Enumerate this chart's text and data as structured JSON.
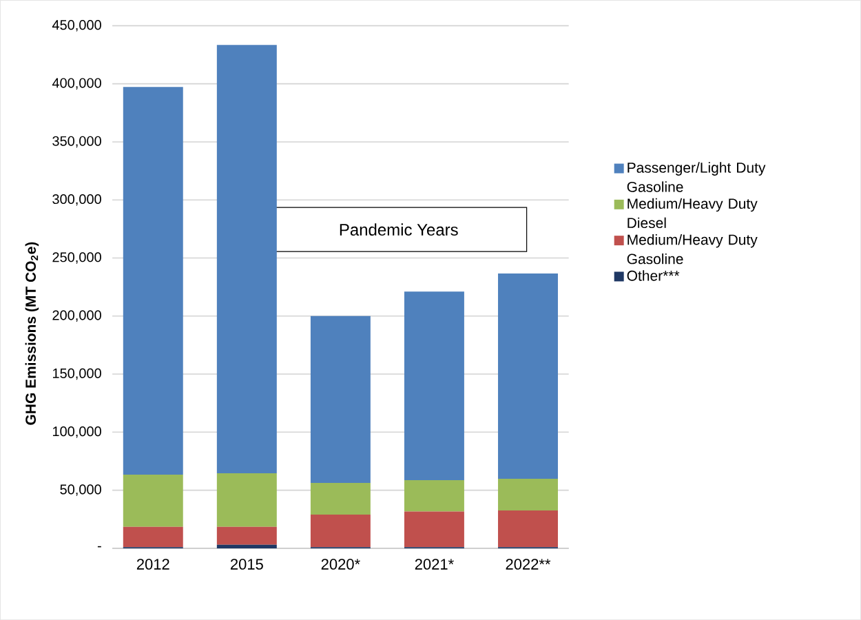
{
  "chart_data": {
    "type": "bar",
    "stacked": true,
    "categories": [
      "2012",
      "2015",
      "2020*",
      "2021*",
      "2022**"
    ],
    "ylabel": "**GHG Emissions (MT CO$_{2}$e)**",
    "ylim": [
      0,
      450000
    ],
    "yticks": [
      {
        "value": 0,
        "label": "-"
      },
      {
        "value": 50000,
        "label": "50,000"
      },
      {
        "value": 100000,
        "label": "100,000"
      },
      {
        "value": 150000,
        "label": "150,000"
      },
      {
        "value": 200000,
        "label": "200,000"
      },
      {
        "value": 250000,
        "label": "250,000"
      },
      {
        "value": 300000,
        "label": "300,000"
      },
      {
        "value": 350000,
        "label": "350,000"
      },
      {
        "value": 400000,
        "label": "400,000"
      },
      {
        "value": 450000,
        "label": "450,000"
      }
    ],
    "grid": "y",
    "legend": "right",
    "annotations": [
      "Pandemic Years"
    ],
    "series": [
      {
        "name": "Other***",
        "color": "#1f3864",
        "values": [
          1000,
          3000,
          1000,
          1000,
          1000
        ]
      },
      {
        "name": "Medium/Heavy Duty Gasoline",
        "color": "#c0504d",
        "values": [
          17400,
          15400,
          28000,
          30700,
          31600
        ]
      },
      {
        "name": "Medium/Heavy Duty Diesel",
        "color": "#9bbb59",
        "values": [
          45000,
          46200,
          27300,
          27000,
          27300
        ]
      },
      {
        "name": "Passenger/Light Duty Gasoline",
        "color": "#4f81bd",
        "values": [
          333800,
          368800,
          143700,
          162400,
          176700
        ]
      }
    ]
  }
}
